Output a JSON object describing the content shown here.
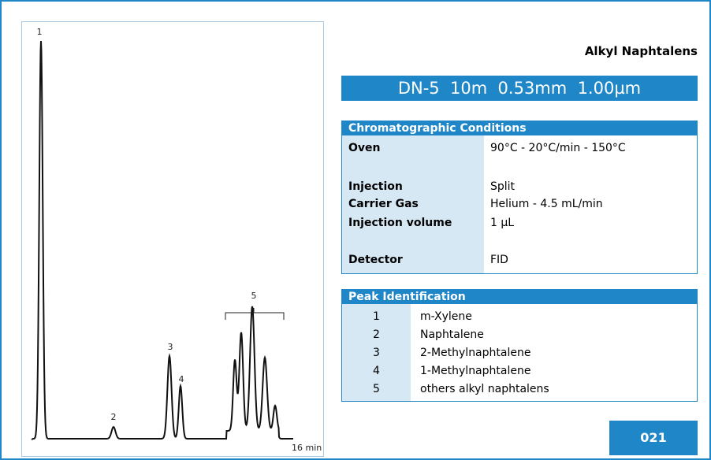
{
  "header": {
    "title": "Alkyl Naphtalens",
    "column": "DN-5  10m  0.53mm  1.00µm",
    "code": "021"
  },
  "conditions": {
    "heading": "Chromatographic Conditions",
    "rows": [
      [
        "Oven",
        "90°C - 20°C/min - 150°C"
      ],
      [
        "Injection",
        "Split"
      ],
      [
        "Carrier Gas",
        "Helium - 4.5 mL/min"
      ],
      [
        "Injection volume",
        "1 µL"
      ],
      [
        "Detector",
        "FID"
      ]
    ]
  },
  "peaks": {
    "heading": "Peak Identification",
    "rows": [
      [
        "1",
        "m-Xylene"
      ],
      [
        "2",
        "Naphtalene"
      ],
      [
        "3",
        "2-Methylnaphtalene"
      ],
      [
        "4",
        "1-Methylnaphtalene"
      ],
      [
        "5",
        "others alkyl naphtalens"
      ]
    ]
  },
  "chromatogram": {
    "peak_labels": [
      "1",
      "2",
      "3",
      "4",
      "5"
    ],
    "axis_label": "16 min"
  }
}
